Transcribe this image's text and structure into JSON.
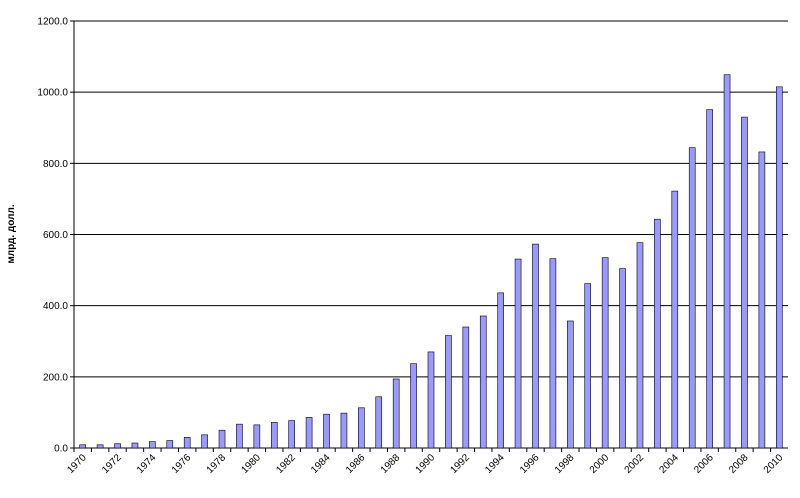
{
  "chart_data": {
    "type": "bar",
    "y_label": "млрд. долл.",
    "categories": [
      "1970",
      null,
      "1972",
      null,
      "1974",
      null,
      "1976",
      null,
      "1978",
      null,
      "1980",
      null,
      "1982",
      null,
      "1984",
      null,
      "1986",
      null,
      "1988",
      null,
      "1990",
      null,
      "1992",
      null,
      "1994",
      null,
      "1996",
      null,
      "1998",
      null,
      "2000",
      null,
      "2002",
      null,
      "2004",
      null,
      "2006",
      null,
      "2008",
      null,
      "2010"
    ],
    "values": [
      9,
      9,
      12,
      14,
      18,
      21,
      30,
      37,
      50,
      67,
      65,
      72,
      77,
      86,
      95,
      98,
      113,
      144,
      194,
      237,
      270,
      316,
      340,
      371,
      436,
      531,
      573,
      532,
      357,
      462,
      535,
      504,
      577,
      643,
      722,
      844,
      951,
      1049,
      930,
      832,
      1015
    ],
    "color": "#9999ff",
    "ylim": [
      0,
      1200
    ],
    "yticks": [
      {
        "value": 0,
        "label": "0.0"
      },
      {
        "value": 200,
        "label": "200.0"
      },
      {
        "value": 400,
        "label": "400.0"
      },
      {
        "value": 600,
        "label": "600.0"
      },
      {
        "value": 800,
        "label": "800.0"
      },
      {
        "value": 1000,
        "label": "1000.0"
      },
      {
        "value": 1200,
        "label": "1200.0"
      }
    ],
    "grid": true
  }
}
